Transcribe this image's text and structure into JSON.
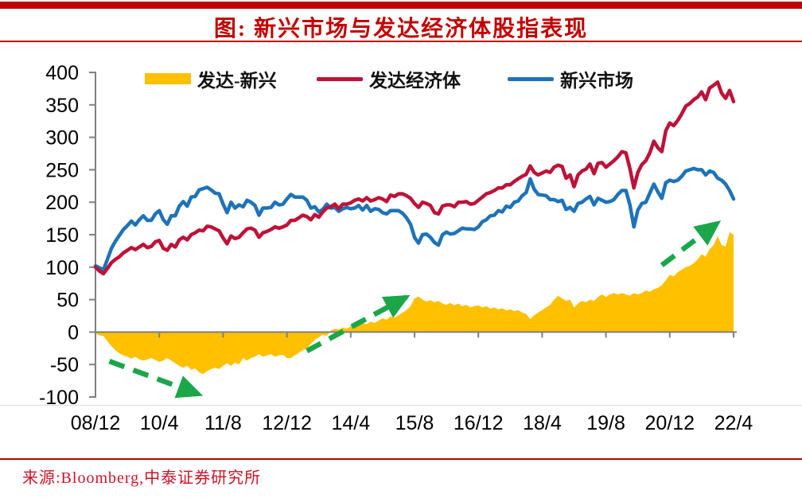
{
  "header": {
    "title": "图: 新兴市场与发达经济体股指表现"
  },
  "footer": {
    "source": "来源:Bloomberg,中泰证券研究所"
  },
  "colors": {
    "accent_red": "#C00000",
    "title_red": "#C40000",
    "source_red": "#CE1126",
    "axis_gray": "#808080",
    "tick_label_black": "#000000"
  },
  "chart_data": {
    "type": "area",
    "subtype": "area + 2 line series, monthly index values rebased to 100 at 2008/12",
    "x_unit": "month (2008/12 to 2022/4)",
    "x_tick_labels": [
      "08/12",
      "10/4",
      "11/8",
      "12/12",
      "14/4",
      "15/8",
      "16/12",
      "18/4",
      "19/8",
      "20/12",
      "22/4"
    ],
    "x_tick_every_months": 16,
    "ylim": [
      -100,
      400
    ],
    "y_ticks": [
      400,
      350,
      300,
      250,
      200,
      150,
      100,
      50,
      0,
      -50,
      -100
    ],
    "grid": "off",
    "legend_position": "top",
    "series": [
      {
        "name": "发达-新兴",
        "type": "area",
        "color": "#FFC000",
        "note": "spread = 发达经济体 minus 新兴市场 (derived from the two line series below)"
      },
      {
        "name": "发达经济体",
        "type": "line",
        "color": "#BE1238",
        "values": [
          100,
          94,
          90,
          98,
          107,
          112,
          116,
          122,
          126,
          130,
          127,
          131,
          135,
          130,
          132,
          139,
          141,
          129,
          126,
          135,
          131,
          142,
          146,
          142,
          150,
          153,
          157,
          156,
          163,
          162,
          159,
          156,
          145,
          136,
          148,
          144,
          146,
          153,
          159,
          160,
          157,
          146,
          153,
          155,
          158,
          162,
          160,
          162,
          165,
          172,
          172,
          176,
          180,
          178,
          173,
          181,
          177,
          185,
          191,
          193,
          197,
          190,
          197,
          197,
          199,
          203,
          205,
          202,
          207,
          202,
          204,
          207,
          205,
          201,
          211,
          209,
          213,
          213,
          210,
          206,
          198,
          192,
          200,
          198,
          195,
          184,
          182,
          194,
          196,
          196,
          193,
          200,
          200,
          201,
          197,
          198,
          203,
          208,
          213,
          215,
          218,
          222,
          222,
          227,
          227,
          232,
          236,
          240,
          243,
          256,
          246,
          242,
          245,
          248,
          246,
          254,
          257,
          255,
          237,
          242,
          224,
          242,
          248,
          251,
          259,
          244,
          260,
          261,
          254,
          259,
          264,
          270,
          278,
          276,
          252,
          222,
          246,
          258,
          264,
          276,
          294,
          284,
          278,
          310,
          322,
          318,
          326,
          336,
          348,
          352,
          358,
          362,
          370,
          358,
          376,
          380,
          385,
          368,
          360,
          372,
          355
        ]
      },
      {
        "name": "新兴市场",
        "type": "line",
        "color": "#1E73B8",
        "values": [
          102,
          99,
          96,
          112,
          129,
          140,
          149,
          158,
          164,
          171,
          165,
          173,
          179,
          172,
          172,
          182,
          187,
          173,
          166,
          179,
          179,
          194,
          201,
          194,
          208,
          209,
          219,
          221,
          223,
          219,
          214,
          213,
          197,
          184,
          200,
          191,
          196,
          193,
          203,
          200,
          195,
          180,
          191,
          191,
          192,
          200,
          196,
          197,
          205,
          212,
          208,
          208,
          208,
          203,
          191,
          193,
          185,
          189,
          197,
          191,
          192,
          186,
          190,
          192,
          190,
          191,
          195,
          188,
          195,
          186,
          190,
          189,
          184,
          182,
          187,
          187,
          187,
          183,
          176,
          166,
          146,
          137,
          150,
          151,
          146,
          138,
          134,
          150,
          154,
          151,
          152,
          156,
          160,
          159,
          159,
          158,
          162,
          170,
          173,
          179,
          180,
          187,
          185,
          194,
          192,
          200,
          202,
          210,
          215,
          236,
          220,
          212,
          211,
          210,
          204,
          204,
          201,
          203,
          189,
          192,
          186,
          198,
          200,
          205,
          209,
          196,
          206,
          203,
          200,
          201,
          204,
          212,
          218,
          218,
          196,
          162,
          188,
          198,
          200,
          214,
          228,
          216,
          206,
          230,
          234,
          232,
          234,
          240,
          248,
          250,
          252,
          250,
          250,
          242,
          248,
          246,
          237,
          234,
          228,
          218,
          205
        ]
      }
    ],
    "annotations": {
      "color": "#1BA64A",
      "style": "dashed trend arrows",
      "arrows": [
        {
          "from_month": 3.5,
          "from_value": -45,
          "to_month": 26,
          "to_value": -96
        },
        {
          "from_month": 53,
          "from_value": -29,
          "to_month": 78,
          "to_value": 54
        },
        {
          "from_month": 142,
          "from_value": 103,
          "to_month": 156,
          "to_value": 168
        }
      ]
    }
  }
}
